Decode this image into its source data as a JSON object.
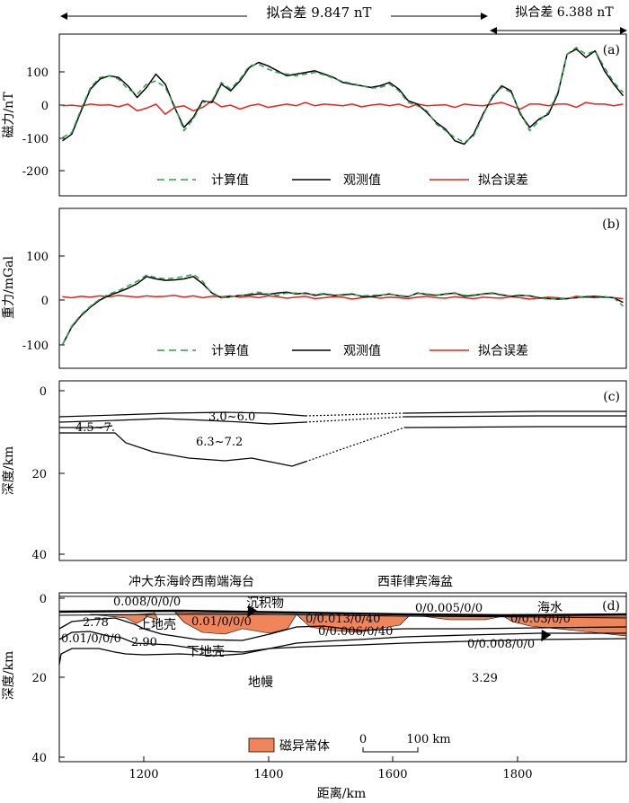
{
  "header": {
    "left_misfit": "拟合差 9.847 nT",
    "right_misfit": "拟合差 6.388 nT"
  },
  "panel_a": {
    "label": "(a)",
    "ylabel": "磁力/nT",
    "yticks": [
      "100",
      "0",
      "-100",
      "-200"
    ],
    "legend": {
      "calc": "计算值",
      "obs": "观测值",
      "err": "拟合误差"
    }
  },
  "panel_b": {
    "label": "(b)",
    "ylabel": "重力/mGal",
    "yticks": [
      "100",
      "0",
      "-100"
    ],
    "legend": {
      "calc": "计算值",
      "obs": "观测值",
      "err": "拟合误差"
    }
  },
  "panel_c": {
    "label": "(c)",
    "ylabel": "深度/km",
    "yticks": [
      "0",
      "20",
      "40"
    ],
    "velocity_labels": {
      "upper": "3.0~6.0",
      "left": "4.5~7.",
      "lower": "6.3~7.2"
    }
  },
  "panel_d": {
    "label": "(d)",
    "ylabel": "深度/km",
    "yticks": [
      "0",
      "20",
      "40"
    ],
    "region_left": "冲大东海岭西南端海台",
    "region_right": "西菲律宾海盆",
    "layer_labels": {
      "sediment": "沉积物",
      "seawater": "海水",
      "upper_crust": "上地壳",
      "lower_crust": "下地壳",
      "mantle": "地幔"
    },
    "property_labels": [
      "0.008/0/0/0",
      "2.78",
      "0.01/0/0/0",
      "0.01/0/0/0",
      "2.90",
      "0/0.013/0/40",
      "0/0.006/0/40",
      "0/0.005/0/0",
      "0/0.03/0/0",
      "0/0.008/0/0",
      "3.29"
    ],
    "legend_label": "磁异常体",
    "scalebar": {
      "start": "0",
      "end": "100 km"
    }
  },
  "xaxis": {
    "label": "距离/km",
    "ticks": [
      "1200",
      "1400",
      "1600",
      "1800"
    ]
  },
  "colors": {
    "observed": "#000000",
    "calculated": "#2e9e4a",
    "misfit": "#e8221c",
    "anomaly_fill": "#f0855a"
  },
  "chart_data": [
    {
      "type": "line",
      "panel": "a",
      "xlim": [
        1060,
        1970
      ],
      "ylim": [
        -275,
        210
      ],
      "series": [
        {
          "name": "观测值",
          "color": "#000000",
          "x": [
            1065,
            1080,
            1095,
            1110,
            1125,
            1140,
            1155,
            1170,
            1185,
            1200,
            1215,
            1230,
            1245,
            1260,
            1275,
            1290,
            1305,
            1320,
            1335,
            1350,
            1365,
            1380,
            1395,
            1410,
            1425,
            1440,
            1455,
            1470,
            1485,
            1500,
            1515,
            1530,
            1545,
            1560,
            1575,
            1590,
            1605,
            1620,
            1635,
            1650,
            1665,
            1680,
            1695,
            1710,
            1725,
            1740,
            1755,
            1770,
            1785,
            1800,
            1815,
            1830,
            1845,
            1860,
            1875,
            1890,
            1905,
            1920,
            1935,
            1950,
            1965
          ],
          "y": [
            -110,
            -90,
            -20,
            45,
            75,
            85,
            80,
            55,
            20,
            50,
            90,
            60,
            -10,
            -70,
            -40,
            10,
            5,
            60,
            40,
            70,
            110,
            125,
            115,
            100,
            85,
            90,
            95,
            100,
            90,
            80,
            65,
            60,
            55,
            50,
            55,
            65,
            45,
            10,
            0,
            -25,
            -55,
            -75,
            -110,
            -120,
            -90,
            -30,
            20,
            55,
            40,
            -30,
            -70,
            -45,
            -30,
            30,
            150,
            165,
            140,
            160,
            100,
            60,
            25
          ]
        },
        {
          "name": "计算值",
          "color": "#2e9e4a",
          "x": [
            1065,
            1080,
            1095,
            1110,
            1125,
            1140,
            1155,
            1170,
            1185,
            1200,
            1215,
            1230,
            1245,
            1260,
            1275,
            1290,
            1305,
            1320,
            1335,
            1350,
            1365,
            1380,
            1395,
            1410,
            1425,
            1440,
            1455,
            1470,
            1485,
            1500,
            1515,
            1530,
            1545,
            1560,
            1575,
            1590,
            1605,
            1620,
            1635,
            1650,
            1665,
            1680,
            1695,
            1710,
            1725,
            1740,
            1755,
            1770,
            1785,
            1800,
            1815,
            1830,
            1845,
            1860,
            1875,
            1890,
            1905,
            1920,
            1935,
            1950,
            1965
          ],
          "y": [
            -100,
            -85,
            -15,
            50,
            80,
            85,
            75,
            45,
            30,
            60,
            70,
            50,
            -5,
            -80,
            -45,
            5,
            10,
            65,
            45,
            75,
            115,
            120,
            105,
            95,
            90,
            85,
            90,
            95,
            88,
            78,
            68,
            62,
            55,
            48,
            50,
            60,
            40,
            5,
            -5,
            -20,
            -60,
            -80,
            -100,
            -115,
            -95,
            -35,
            25,
            50,
            35,
            -25,
            -80,
            -50,
            -25,
            35,
            150,
            170,
            150,
            160,
            110,
            65,
            35
          ]
        },
        {
          "name": "拟合误差",
          "color": "#e8221c",
          "x": [
            1065,
            1080,
            1095,
            1110,
            1125,
            1140,
            1155,
            1170,
            1185,
            1200,
            1215,
            1230,
            1245,
            1260,
            1275,
            1290,
            1305,
            1320,
            1335,
            1350,
            1365,
            1380,
            1395,
            1410,
            1425,
            1440,
            1455,
            1470,
            1485,
            1500,
            1515,
            1530,
            1545,
            1560,
            1575,
            1590,
            1605,
            1620,
            1635,
            1650,
            1665,
            1680,
            1695,
            1710,
            1725,
            1740,
            1755,
            1770,
            1785,
            1800,
            1815,
            1830,
            1845,
            1860,
            1875,
            1890,
            1905,
            1920,
            1935,
            1950,
            1965
          ],
          "y": [
            -5,
            -3,
            -6,
            0,
            -3,
            -2,
            -8,
            0,
            -20,
            -12,
            0,
            -30,
            -10,
            -5,
            -20,
            -10,
            10,
            -8,
            -3,
            -15,
            -5,
            0,
            -10,
            -5,
            0,
            -5,
            5,
            -5,
            0,
            -2,
            -5,
            0,
            -8,
            -3,
            0,
            -5,
            0,
            -10,
            0,
            -5,
            -3,
            -2,
            -10,
            0,
            -3,
            -5,
            0,
            5,
            -5,
            -15,
            0,
            0,
            -5,
            0,
            0,
            -10,
            5,
            0,
            0,
            -5,
            0
          ]
        }
      ]
    },
    {
      "type": "line",
      "panel": "b",
      "xlim": [
        1060,
        1970
      ],
      "ylim": [
        -150,
        190
      ],
      "series": [
        {
          "name": "观测值",
          "color": "#000000",
          "x": [
            1065,
            1080,
            1095,
            1110,
            1125,
            1140,
            1155,
            1170,
            1185,
            1200,
            1215,
            1230,
            1245,
            1260,
            1275,
            1290,
            1305,
            1320,
            1335,
            1350,
            1365,
            1380,
            1395,
            1410,
            1425,
            1440,
            1455,
            1470,
            1485,
            1500,
            1515,
            1530,
            1545,
            1560,
            1575,
            1590,
            1605,
            1620,
            1635,
            1650,
            1665,
            1680,
            1695,
            1710,
            1725,
            1740,
            1755,
            1770,
            1785,
            1800,
            1815,
            1830,
            1845,
            1860,
            1875,
            1890,
            1905,
            1920,
            1935,
            1950,
            1965
          ],
          "y": [
            -100,
            -62,
            -38,
            -20,
            -5,
            5,
            12,
            20,
            30,
            45,
            40,
            37,
            38,
            40,
            45,
            30,
            10,
            0,
            2,
            5,
            6,
            8,
            7,
            10,
            12,
            8,
            10,
            5,
            8,
            5,
            6,
            8,
            3,
            2,
            5,
            8,
            4,
            2,
            10,
            7,
            5,
            8,
            10,
            3,
            5,
            8,
            10,
            6,
            3,
            5,
            4,
            0,
            -2,
            -3,
            -2,
            0,
            2,
            3,
            1,
            0,
            -10
          ]
        },
        {
          "name": "计算值",
          "color": "#2e9e4a",
          "x": [
            1065,
            1080,
            1095,
            1110,
            1125,
            1140,
            1155,
            1170,
            1185,
            1200,
            1215,
            1230,
            1245,
            1260,
            1275,
            1290,
            1305,
            1320,
            1335,
            1350,
            1365,
            1380,
            1395,
            1410,
            1425,
            1440,
            1455,
            1470,
            1485,
            1500,
            1515,
            1530,
            1545,
            1560,
            1575,
            1590,
            1605,
            1620,
            1635,
            1650,
            1665,
            1680,
            1695,
            1710,
            1725,
            1740,
            1755,
            1770,
            1785,
            1800,
            1815,
            1830,
            1845,
            1860,
            1875,
            1890,
            1905,
            1920,
            1935,
            1950,
            1965
          ],
          "y": [
            -100,
            -60,
            -36,
            -18,
            -3,
            8,
            15,
            25,
            35,
            48,
            43,
            40,
            42,
            45,
            50,
            35,
            8,
            0,
            3,
            4,
            8,
            12,
            8,
            5,
            10,
            10,
            8,
            7,
            9,
            6,
            5,
            7,
            4,
            5,
            6,
            7,
            5,
            3,
            9,
            8,
            6,
            7,
            9,
            5,
            6,
            7,
            9,
            5,
            4,
            6,
            3,
            -1,
            -3,
            -2,
            -1,
            0,
            3,
            4,
            2,
            0,
            -18
          ]
        },
        {
          "name": "拟合误差",
          "color": "#e8221c",
          "x": [
            1065,
            1080,
            1095,
            1110,
            1125,
            1140,
            1155,
            1170,
            1185,
            1200,
            1215,
            1230,
            1245,
            1260,
            1275,
            1290,
            1305,
            1320,
            1335,
            1350,
            1365,
            1380,
            1395,
            1410,
            1425,
            1440,
            1455,
            1470,
            1485,
            1500,
            1515,
            1530,
            1545,
            1560,
            1575,
            1590,
            1605,
            1620,
            1635,
            1650,
            1665,
            1680,
            1695,
            1710,
            1725,
            1740,
            1755,
            1770,
            1785,
            1800,
            1815,
            1830,
            1845,
            1860,
            1875,
            1890,
            1905,
            1920,
            1935,
            1950,
            1965
          ],
          "y": [
            2,
            0,
            3,
            1,
            4,
            2,
            5,
            3,
            1,
            4,
            2,
            3,
            5,
            1,
            4,
            0,
            3,
            2,
            4,
            1,
            3,
            0,
            4,
            2,
            -1,
            1,
            3,
            -2,
            0,
            2,
            1,
            -3,
            0,
            2,
            -1,
            1,
            0,
            -2,
            1,
            3,
            0,
            -1,
            2,
            0,
            -2,
            1,
            0,
            -1,
            2,
            0,
            -3,
            -1,
            1,
            0,
            -2,
            3,
            1,
            0,
            2,
            0,
            -2
          ]
        }
      ]
    }
  ]
}
